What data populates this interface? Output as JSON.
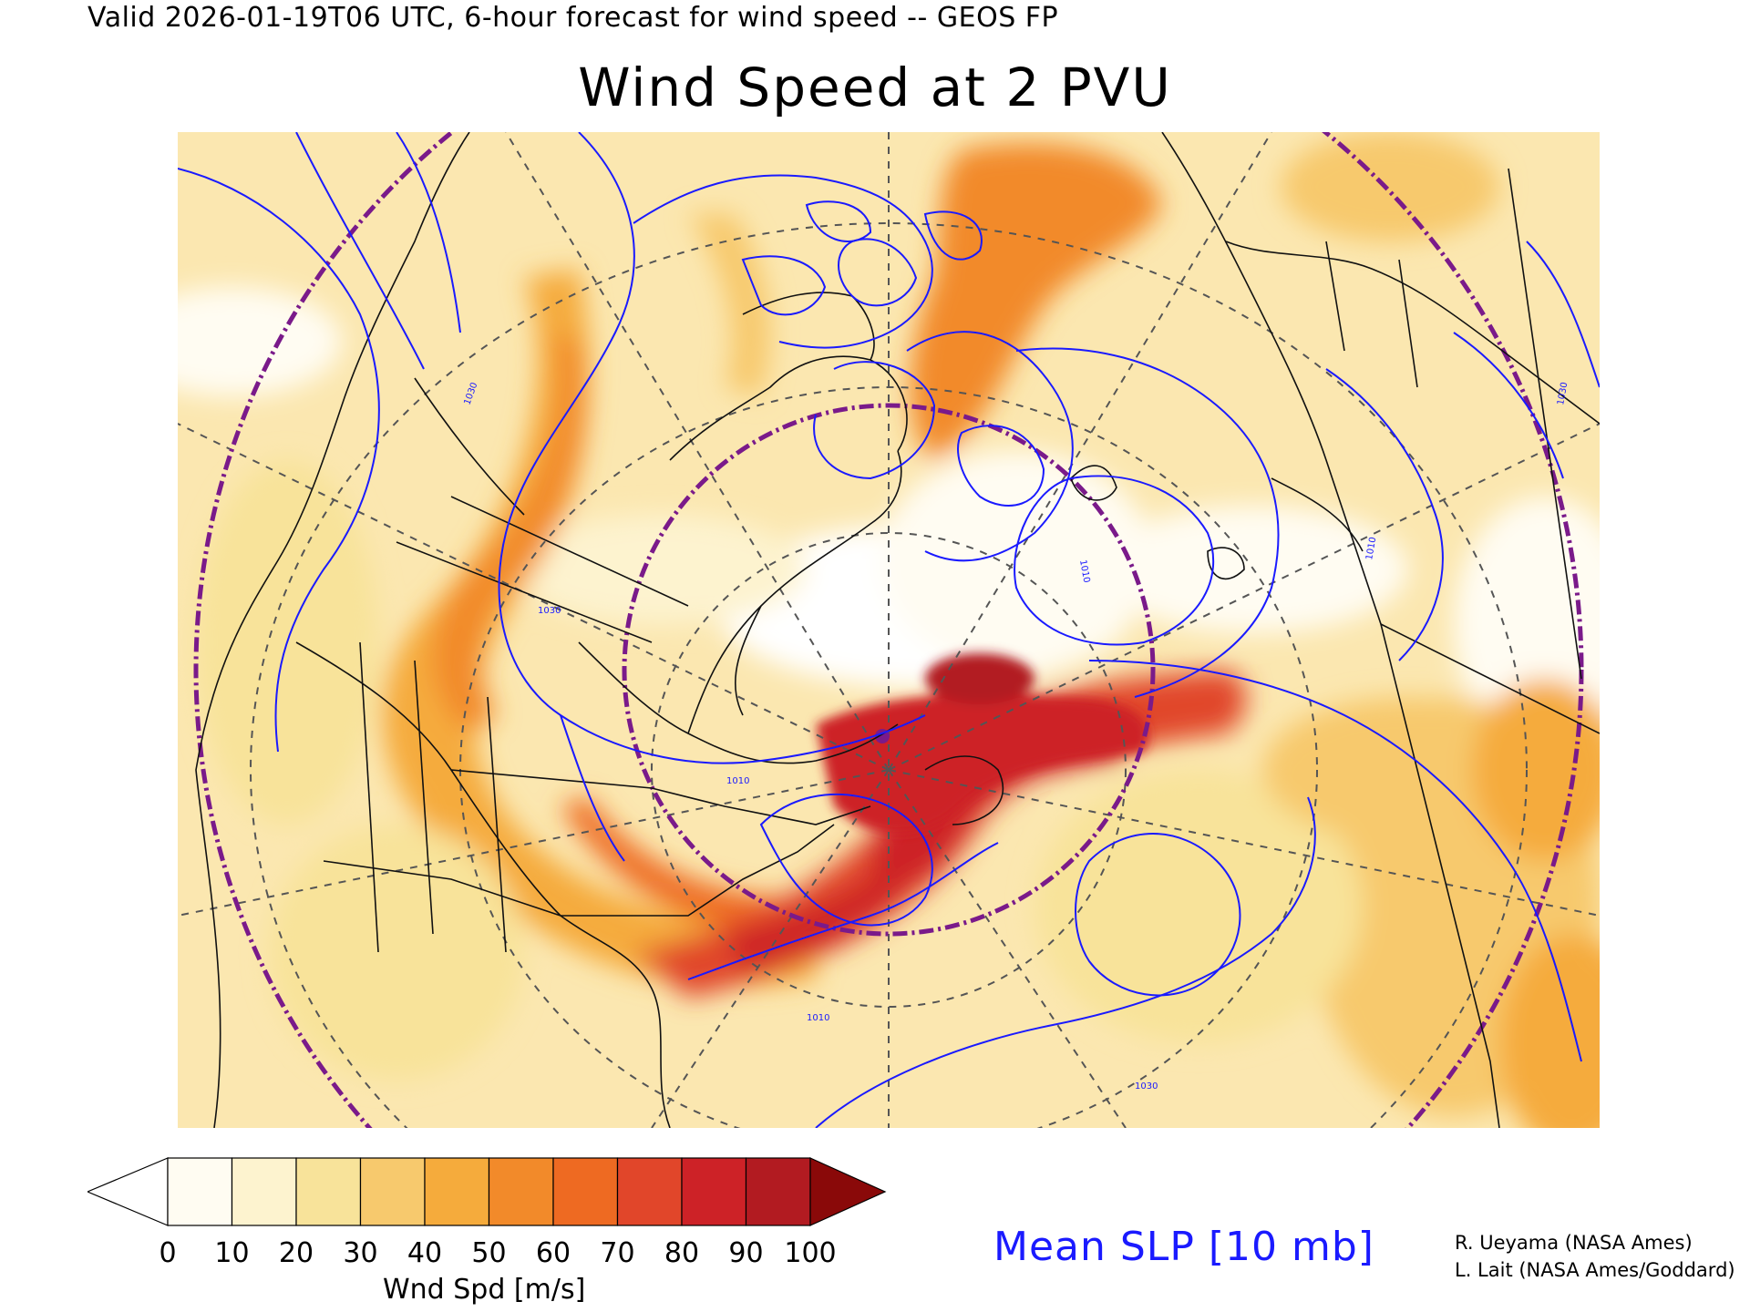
{
  "header": {
    "valid_line": "Valid 2026-01-19T06 UTC, 6-hour forecast for wind speed -- GEOS FP",
    "title": "Wind Speed at 2 PVU"
  },
  "colorbar": {
    "ticks": [
      "0",
      "10",
      "20",
      "30",
      "40",
      "50",
      "60",
      "70",
      "80",
      "90",
      "100"
    ],
    "label": "Wnd Spd [m/s]",
    "colors": [
      "#fffcf2",
      "#fdf3cf",
      "#f8e39a",
      "#f7c96d",
      "#f5ab3c",
      "#f28a2a",
      "#ee6a22",
      "#e1462a",
      "#cd2227",
      "#b21b21",
      "#8a0909"
    ],
    "under_color": "#ffffff",
    "over_color": "#8a0909"
  },
  "overlay": {
    "slp_label": "Mean SLP [10 mb]",
    "slp_color": "#1a1aff",
    "isobar_labels": [
      "1030",
      "1030",
      "1010",
      "1010",
      "1010",
      "1030",
      "1010",
      "1030"
    ]
  },
  "credits": {
    "line1": "R. Ueyama (NASA Ames)",
    "line2": "L. Lait (NASA Ames/Goddard)"
  }
}
